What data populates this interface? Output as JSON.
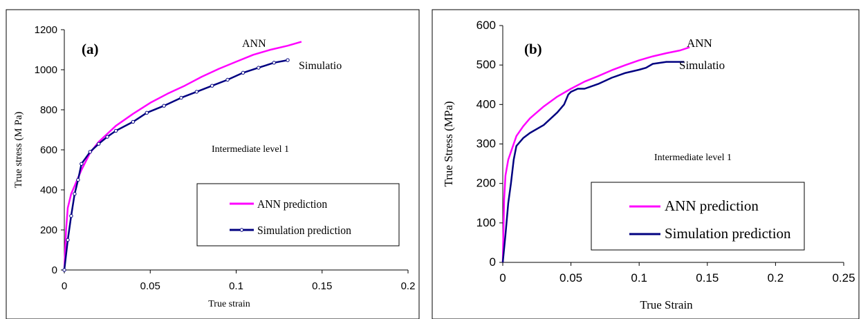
{
  "chart_data": [
    {
      "panel_label": "(a)",
      "type": "line",
      "xlabel": "True strain",
      "ylabel": "True stress (M Pa)",
      "xlim": [
        0,
        0.2
      ],
      "ylim": [
        0,
        1200
      ],
      "xticks": [
        "0",
        "0.05",
        "0.1",
        "0.15",
        "0.2"
      ],
      "yticks": [
        "0",
        "200",
        "400",
        "600",
        "800",
        "1000",
        "1200"
      ],
      "annotation": "Intermediate level 1",
      "legend_placement": "bottom-right",
      "series": [
        {
          "name": "ANN prediction",
          "end_label": "ANN",
          "color": "#ff00ff",
          "marker": "none",
          "points": [
            [
              0,
              0
            ],
            [
              0.001,
              200
            ],
            [
              0.002,
              310
            ],
            [
              0.004,
              380
            ],
            [
              0.006,
              420
            ],
            [
              0.01,
              500
            ],
            [
              0.015,
              585
            ],
            [
              0.02,
              640
            ],
            [
              0.03,
              720
            ],
            [
              0.04,
              780
            ],
            [
              0.05,
              835
            ],
            [
              0.06,
              880
            ],
            [
              0.07,
              920
            ],
            [
              0.08,
              965
            ],
            [
              0.09,
              1005
            ],
            [
              0.1,
              1040
            ],
            [
              0.11,
              1075
            ],
            [
              0.12,
              1100
            ],
            [
              0.13,
              1120
            ],
            [
              0.138,
              1140
            ]
          ]
        },
        {
          "name": "Simulation prediction",
          "end_label": "Simulatio",
          "color": "#000080",
          "marker": "circle",
          "points": [
            [
              0,
              0
            ],
            [
              0.002,
              150
            ],
            [
              0.004,
              270
            ],
            [
              0.006,
              380
            ],
            [
              0.008,
              450
            ],
            [
              0.01,
              530
            ],
            [
              0.015,
              590
            ],
            [
              0.02,
              630
            ],
            [
              0.025,
              665
            ],
            [
              0.03,
              695
            ],
            [
              0.04,
              740
            ],
            [
              0.048,
              785
            ],
            [
              0.058,
              820
            ],
            [
              0.068,
              860
            ],
            [
              0.077,
              890
            ],
            [
              0.086,
              920
            ],
            [
              0.095,
              950
            ],
            [
              0.104,
              985
            ],
            [
              0.113,
              1010
            ],
            [
              0.122,
              1035
            ],
            [
              0.13,
              1048
            ]
          ]
        }
      ]
    },
    {
      "panel_label": "(b)",
      "type": "line",
      "xlabel": "True Strain",
      "ylabel": "True Stress (MPa)",
      "xlim": [
        0,
        0.25
      ],
      "ylim": [
        0,
        600
      ],
      "xticks": [
        "0",
        "0.05",
        "0.1",
        "0.15",
        "0.2",
        "0.25"
      ],
      "yticks": [
        "0",
        "100",
        "200",
        "300",
        "400",
        "500",
        "600"
      ],
      "annotation": "Intermediate level 1",
      "legend_placement": "bottom-right",
      "series": [
        {
          "name": "ANN prediction",
          "end_label": "ANN",
          "color": "#ff00ff",
          "marker": "none",
          "points": [
            [
              0,
              0
            ],
            [
              0.001,
              160
            ],
            [
              0.002,
              220
            ],
            [
              0.004,
              260
            ],
            [
              0.007,
              290
            ],
            [
              0.01,
              320
            ],
            [
              0.015,
              345
            ],
            [
              0.02,
              365
            ],
            [
              0.03,
              395
            ],
            [
              0.04,
              420
            ],
            [
              0.05,
              440
            ],
            [
              0.06,
              458
            ],
            [
              0.07,
              472
            ],
            [
              0.08,
              487
            ],
            [
              0.09,
              500
            ],
            [
              0.1,
              512
            ],
            [
              0.11,
              522
            ],
            [
              0.12,
              530
            ],
            [
              0.13,
              537
            ],
            [
              0.137,
              545
            ]
          ]
        },
        {
          "name": "Simulation prediction",
          "end_label": "Simulatio",
          "color": "#000080",
          "marker": "none",
          "points": [
            [
              0,
              0
            ],
            [
              0.002,
              70
            ],
            [
              0.004,
              150
            ],
            [
              0.006,
              200
            ],
            [
              0.008,
              260
            ],
            [
              0.01,
              295
            ],
            [
              0.015,
              315
            ],
            [
              0.02,
              328
            ],
            [
              0.03,
              348
            ],
            [
              0.04,
              380
            ],
            [
              0.045,
              400
            ],
            [
              0.048,
              425
            ],
            [
              0.05,
              432
            ],
            [
              0.055,
              440
            ],
            [
              0.06,
              440
            ],
            [
              0.07,
              452
            ],
            [
              0.08,
              468
            ],
            [
              0.09,
              480
            ],
            [
              0.1,
              488
            ],
            [
              0.105,
              493
            ],
            [
              0.11,
              503
            ],
            [
              0.12,
              508
            ],
            [
              0.133,
              508
            ]
          ]
        }
      ]
    }
  ]
}
